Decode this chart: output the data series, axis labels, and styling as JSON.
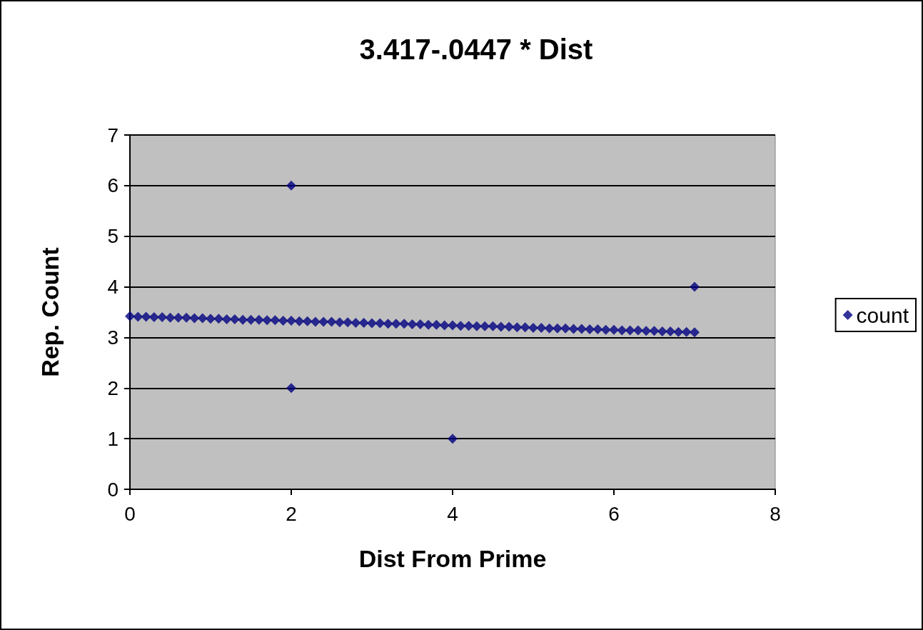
{
  "chart_data": {
    "type": "scatter",
    "title": "3.417-.0447 * Dist",
    "xlabel": "Dist From Prime",
    "ylabel": "Rep. Count",
    "xlim": [
      0,
      8
    ],
    "xticks": [
      0,
      2,
      4,
      6,
      8
    ],
    "ylim": [
      0,
      7
    ],
    "yticks": [
      0,
      1,
      2,
      3,
      4,
      5,
      6,
      7
    ],
    "grid": "y",
    "legend": "right",
    "marker": "diamond",
    "series": [
      {
        "name": "count",
        "color": "#000080",
        "x": [
          0,
          0.1,
          0.2,
          0.3,
          0.4,
          0.5,
          0.6,
          0.7,
          0.8,
          0.9,
          1,
          1.1,
          1.2,
          1.3,
          1.4,
          1.5,
          1.6,
          1.7,
          1.8,
          1.9,
          2,
          2.1,
          2.2,
          2.3,
          2.4,
          2.5,
          2.6,
          2.7,
          2.8,
          2.9,
          3,
          3.1,
          3.2,
          3.3,
          3.4,
          3.5,
          3.6,
          3.7,
          3.8,
          3.9,
          4,
          4.1,
          4.2,
          4.3,
          4.4,
          4.5,
          4.6,
          4.7,
          4.8,
          4.9,
          5,
          5.1,
          5.2,
          5.3,
          5.4,
          5.5,
          5.6,
          5.7,
          5.8,
          5.9,
          6,
          6.1,
          6.2,
          6.3,
          6.4,
          6.5,
          6.6,
          6.7,
          6.8,
          6.9,
          7,
          2,
          2,
          4,
          7
        ],
        "values": [
          3.42,
          3.41,
          3.41,
          3.4,
          3.4,
          3.39,
          3.39,
          3.39,
          3.38,
          3.38,
          3.37,
          3.37,
          3.36,
          3.36,
          3.35,
          3.35,
          3.35,
          3.34,
          3.34,
          3.33,
          3.33,
          3.32,
          3.32,
          3.31,
          3.31,
          3.31,
          3.3,
          3.3,
          3.29,
          3.29,
          3.28,
          3.28,
          3.27,
          3.27,
          3.27,
          3.26,
          3.26,
          3.25,
          3.25,
          3.24,
          3.24,
          3.23,
          3.23,
          3.22,
          3.22,
          3.22,
          3.21,
          3.21,
          3.2,
          3.2,
          3.19,
          3.19,
          3.18,
          3.18,
          3.18,
          3.17,
          3.17,
          3.16,
          3.16,
          3.15,
          3.15,
          3.14,
          3.14,
          3.14,
          3.13,
          3.13,
          3.12,
          3.12,
          3.11,
          3.11,
          3.1,
          6,
          2,
          1,
          4
        ]
      }
    ]
  }
}
